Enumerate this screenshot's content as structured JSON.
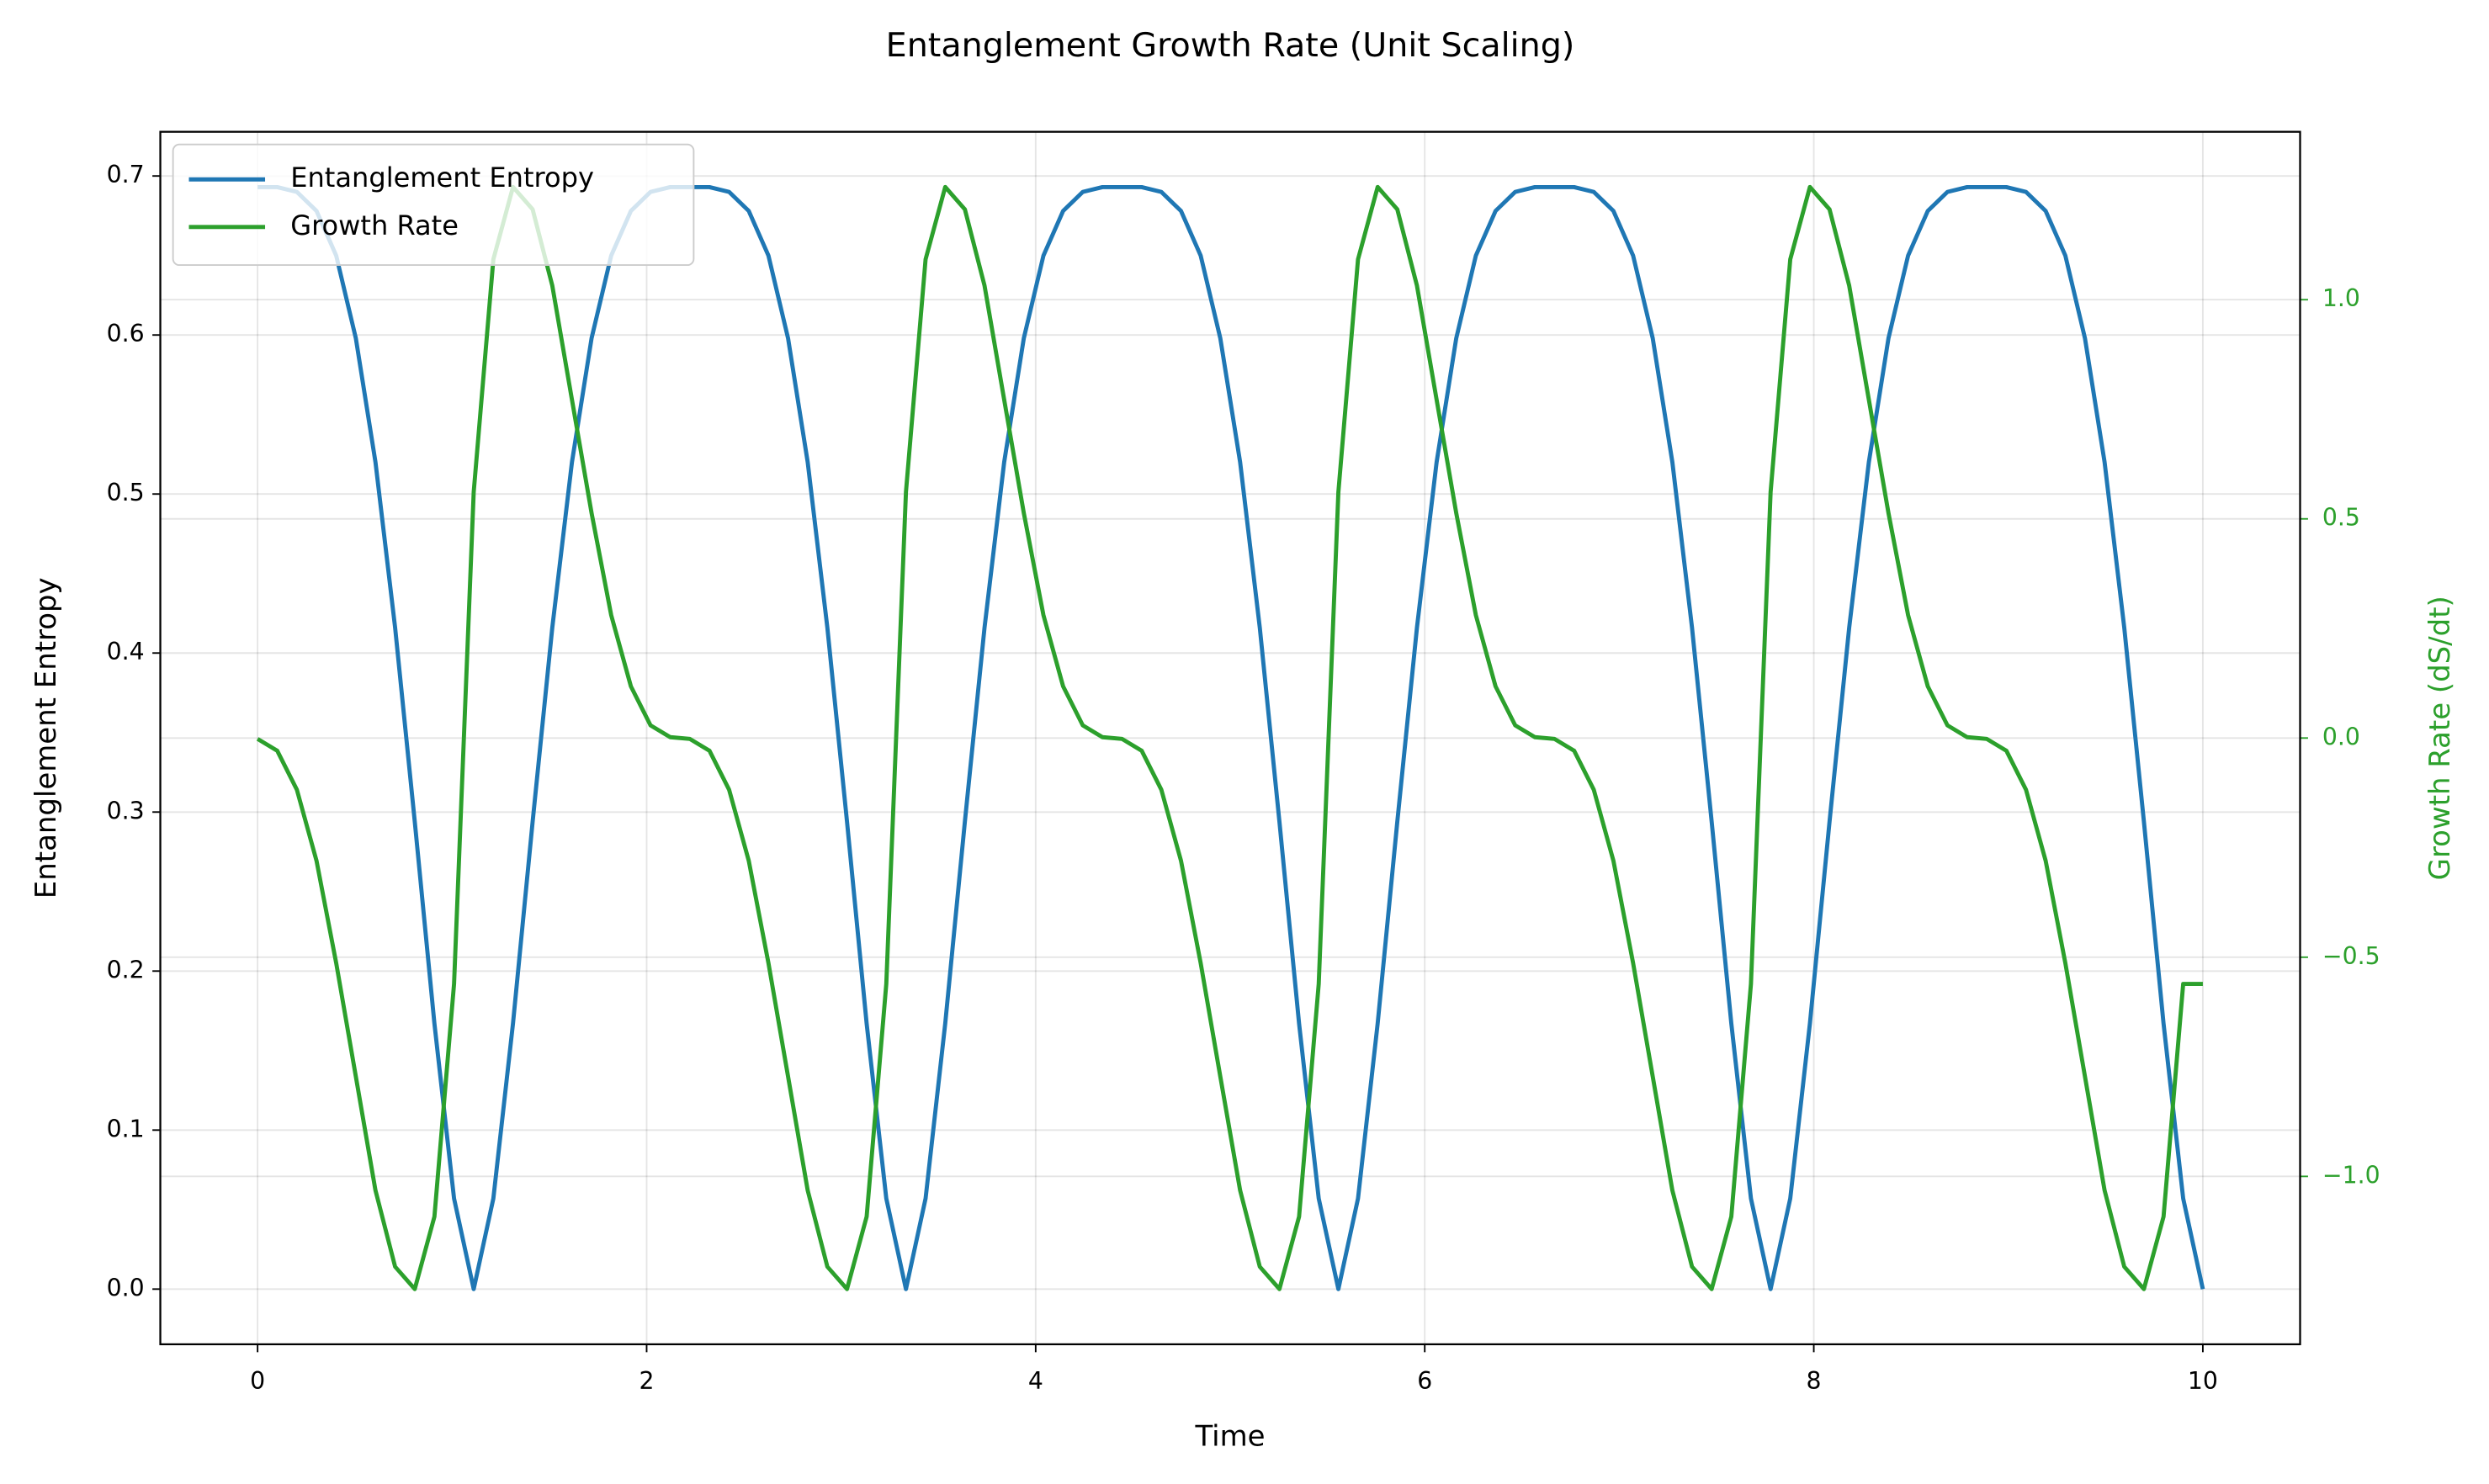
{
  "chart_data": {
    "type": "line",
    "title": "Entanglement Growth Rate (Unit Scaling)",
    "x_label": "Time",
    "y_label": "Entanglement Entropy",
    "y2_label": "Growth Rate (dS/dt)",
    "x": [
      0,
      0.101,
      0.202,
      0.303,
      0.404,
      0.505,
      0.606,
      0.707,
      0.808,
      0.909,
      1.01,
      1.111,
      1.212,
      1.313,
      1.414,
      1.515,
      1.616,
      1.717,
      1.818,
      1.919,
      2.02,
      2.121,
      2.222,
      2.323,
      2.424,
      2.525,
      2.626,
      2.727,
      2.828,
      2.929,
      3.03,
      3.131,
      3.232,
      3.333,
      3.434,
      3.535,
      3.636,
      3.737,
      3.838,
      3.939,
      4.04,
      4.141,
      4.242,
      4.343,
      4.444,
      4.545,
      4.646,
      4.747,
      4.848,
      4.949,
      5.051,
      5.152,
      5.253,
      5.354,
      5.455,
      5.556,
      5.657,
      5.758,
      5.859,
      5.96,
      6.061,
      6.162,
      6.263,
      6.364,
      6.465,
      6.566,
      6.667,
      6.768,
      6.869,
      6.97,
      7.071,
      7.172,
      7.273,
      7.374,
      7.475,
      7.576,
      7.677,
      7.778,
      7.879,
      7.98,
      8.081,
      8.182,
      8.283,
      8.384,
      8.485,
      8.586,
      8.687,
      8.788,
      8.889,
      8.99,
      9.091,
      9.192,
      9.293,
      9.394,
      9.495,
      9.596,
      9.697,
      9.798,
      9.899,
      10
    ],
    "series": [
      {
        "name": "Entanglement Entropy",
        "color": "#1f77b4",
        "values": [
          0.693,
          0.693,
          0.69,
          0.678,
          0.65,
          0.598,
          0.52,
          0.416,
          0.294,
          0.167,
          0.057,
          0,
          0.057,
          0.167,
          0.294,
          0.416,
          0.52,
          0.598,
          0.65,
          0.678,
          0.69,
          0.693,
          0.693,
          0.693,
          0.69,
          0.678,
          0.65,
          0.598,
          0.52,
          0.416,
          0.294,
          0.167,
          0.057,
          0,
          0.057,
          0.167,
          0.294,
          0.416,
          0.52,
          0.598,
          0.65,
          0.678,
          0.69,
          0.693,
          0.693,
          0.693,
          0.69,
          0.678,
          0.65,
          0.598,
          0.52,
          0.416,
          0.294,
          0.167,
          0.057,
          0,
          0.057,
          0.167,
          0.294,
          0.416,
          0.52,
          0.598,
          0.65,
          0.678,
          0.69,
          0.693,
          0.693,
          0.693,
          0.69,
          0.678,
          0.65,
          0.598,
          0.52,
          0.416,
          0.294,
          0.167,
          0.057,
          0,
          0.057,
          0.167,
          0.294,
          0.416,
          0.52,
          0.598,
          0.65,
          0.678,
          0.69,
          0.693,
          0.693,
          0.693,
          0.69,
          0.678,
          0.65,
          0.598,
          0.52,
          0.416,
          0.294,
          0.167,
          0.057,
          0
        ]
      },
      {
        "name": "Growth Rate",
        "color": "#2ca02c",
        "axis": "y2",
        "values": [
          -0.002,
          -0.029,
          -0.118,
          -0.28,
          -0.513,
          -0.772,
          -1.032,
          -1.206,
          -1.257,
          -1.092,
          -0.561,
          0.561,
          1.092,
          1.257,
          1.206,
          1.032,
          0.772,
          0.513,
          0.28,
          0.118,
          0.029,
          0.002,
          -0.002,
          -0.029,
          -0.118,
          -0.28,
          -0.513,
          -0.772,
          -1.032,
          -1.206,
          -1.257,
          -1.092,
          -0.561,
          0.561,
          1.092,
          1.257,
          1.206,
          1.032,
          0.772,
          0.513,
          0.28,
          0.118,
          0.029,
          0.002,
          -0.002,
          -0.029,
          -0.118,
          -0.28,
          -0.513,
          -0.772,
          -1.032,
          -1.206,
          -1.257,
          -1.092,
          -0.561,
          0.561,
          1.092,
          1.257,
          1.206,
          1.032,
          0.772,
          0.513,
          0.28,
          0.118,
          0.029,
          0.002,
          -0.002,
          -0.029,
          -0.118,
          -0.28,
          -0.513,
          -0.772,
          -1.032,
          -1.206,
          -1.257,
          -1.092,
          -0.561,
          0.561,
          1.092,
          1.257,
          1.206,
          1.032,
          0.772,
          0.513,
          0.28,
          0.118,
          0.029,
          0.002,
          -0.002,
          -0.029,
          -0.118,
          -0.28,
          -0.513,
          -0.772,
          -1.032,
          -1.206,
          -1.257,
          -1.092,
          -0.561,
          -0.561
        ]
      }
    ],
    "xlim": [
      -0.5,
      10.5
    ],
    "xticks": [
      0,
      2,
      4,
      6,
      8,
      10
    ],
    "ylim": [
      -0.0347,
      0.7278
    ],
    "yticks": [
      {
        "value": 0,
        "label": "0.0"
      },
      0.1,
      0.2,
      0.3,
      0.4,
      0.5,
      0.6,
      0.7
    ],
    "y2lim": [
      -1.383,
      1.383
    ],
    "y2ticks": [
      {
        "value": -1,
        "label": "−1.0"
      },
      {
        "value": -0.5,
        "label": "−0.5"
      },
      {
        "value": 0,
        "label": "0.0"
      },
      0.5,
      {
        "value": 1,
        "label": "1.0"
      }
    ],
    "y2_color": "#2ca02c",
    "grid": true,
    "legend": "upper left"
  }
}
